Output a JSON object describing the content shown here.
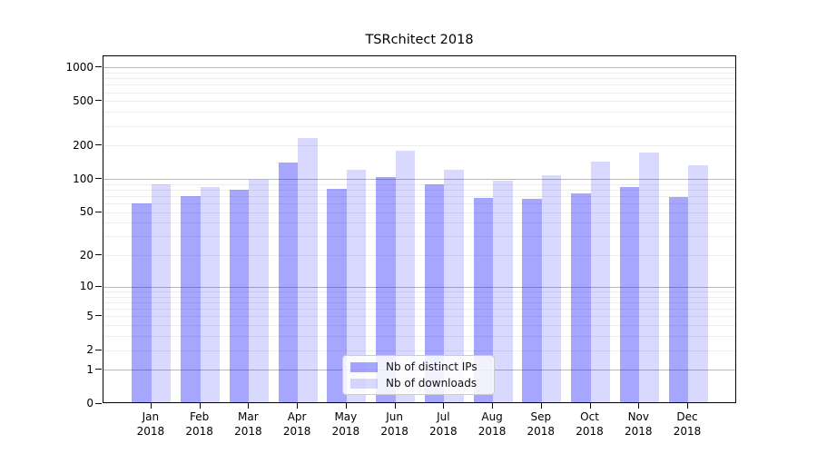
{
  "chart_data": {
    "type": "bar",
    "title": "TSRchitect 2018",
    "categories": [
      "Jan 2018",
      "Feb 2018",
      "Mar 2018",
      "Apr 2018",
      "May 2018",
      "Jun 2018",
      "Jul 2018",
      "Aug 2018",
      "Sep 2018",
      "Oct 2018",
      "Nov 2018",
      "Dec 2018"
    ],
    "series": [
      {
        "name": "Nb of distinct IPs",
        "color": "#0000ff",
        "alpha": 0.35,
        "values": [
          61,
          71,
          81,
          143,
          82,
          106,
          91,
          68,
          67,
          75,
          86,
          70
        ]
      },
      {
        "name": "Nb of downloads",
        "color": "#0000ff",
        "alpha": 0.15,
        "values": [
          90,
          85,
          100,
          235,
          122,
          181,
          122,
          98,
          110,
          146,
          175,
          133
        ]
      }
    ],
    "yscale": "log1p",
    "yticks": [
      0,
      1,
      2,
      5,
      10,
      20,
      50,
      100,
      200,
      500,
      1000
    ],
    "major_gridlines": [
      1,
      10,
      100,
      1000
    ],
    "ylim": [
      0,
      1268
    ],
    "xlabel": "",
    "ylabel": "",
    "grid": true,
    "legend_position": "lower center",
    "spine_color": "#000000",
    "minor_grid_color": "#ededed",
    "major_grid_color": "#b8b8b8"
  }
}
